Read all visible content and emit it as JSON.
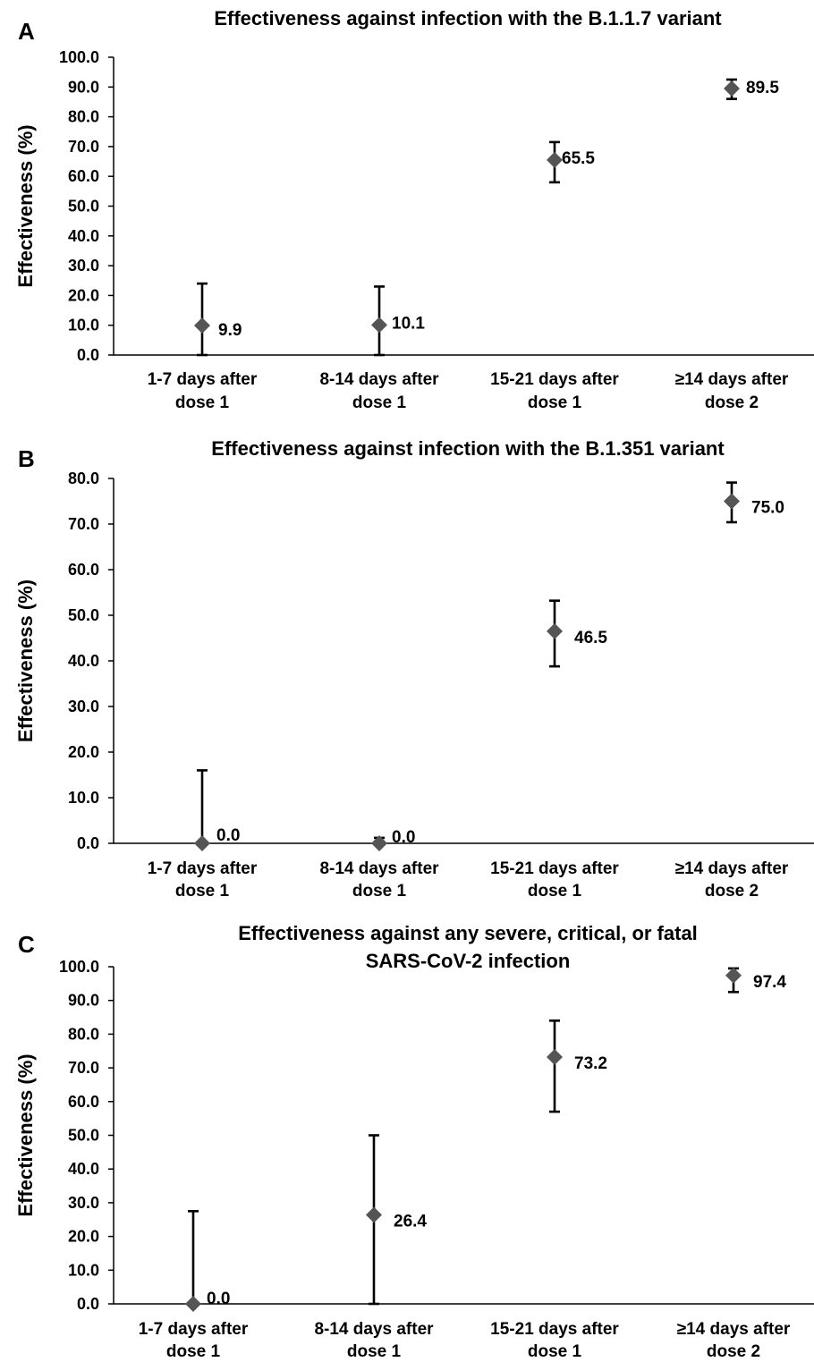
{
  "chart_data": [
    {
      "panel": "A",
      "type": "scatter",
      "title": [
        "Effectiveness against infection with the B.1.1.7 variant"
      ],
      "ylabel": "Effectiveness (%)",
      "xlabel": "",
      "categories": [
        [
          "1-7 days after",
          "dose 1"
        ],
        [
          "8-14 days after",
          "dose 1"
        ],
        [
          "15-21 days after",
          "dose 1"
        ],
        [
          "≥14 days after",
          "dose 2"
        ]
      ],
      "yticks": [
        "0.0",
        "10.0",
        "20.0",
        "30.0",
        "40.0",
        "50.0",
        "60.0",
        "70.0",
        "80.0",
        "90.0",
        "100.0"
      ],
      "ylim": [
        0,
        100
      ],
      "grid": false,
      "values": [
        9.9,
        10.1,
        65.5,
        89.5
      ],
      "labels": [
        "9.9",
        "10.1",
        "65.5",
        "89.5"
      ],
      "ci_lower": [
        0,
        0,
        58,
        86
      ],
      "ci_upper": [
        24,
        23,
        71.5,
        92.5
      ]
    },
    {
      "panel": "B",
      "type": "scatter",
      "title": [
        "Effectiveness against infection with the B.1.351 variant"
      ],
      "ylabel": "Effectiveness (%)",
      "xlabel": "",
      "categories": [
        [
          "1-7 days after",
          "dose 1"
        ],
        [
          "8-14 days after",
          "dose 1"
        ],
        [
          "15-21 days after",
          "dose 1"
        ],
        [
          "≥14 days after",
          "dose 2"
        ]
      ],
      "yticks": [
        "0.0",
        "10.0",
        "20.0",
        "30.0",
        "40.0",
        "50.0",
        "60.0",
        "70.0",
        "80.0"
      ],
      "ylim": [
        0,
        80
      ],
      "grid": false,
      "values": [
        0.0,
        0.0,
        46.5,
        75.0
      ],
      "labels": [
        "0.0",
        "0.0",
        "46.5",
        "75.0"
      ],
      "ci_lower": [
        0,
        0,
        38.8,
        70.4
      ],
      "ci_upper": [
        16,
        1.2,
        53.2,
        79.1
      ]
    },
    {
      "panel": "C",
      "type": "scatter",
      "title": [
        "Effectiveness against any severe, critical, or fatal",
        "SARS-CoV-2 infection"
      ],
      "ylabel": "Effectiveness (%)",
      "xlabel": "",
      "categories": [
        [
          "1-7 days after",
          "dose 1"
        ],
        [
          "8-14 days after",
          "dose 1"
        ],
        [
          "15-21 days after",
          "dose 1"
        ],
        [
          "≥14 days after",
          "dose 2"
        ]
      ],
      "yticks": [
        "0.0",
        "10.0",
        "20.0",
        "30.0",
        "40.0",
        "50.0",
        "60.0",
        "70.0",
        "80.0",
        "90.0",
        "100.0"
      ],
      "ylim": [
        0,
        100
      ],
      "grid": false,
      "values": [
        0.0,
        26.4,
        73.2,
        97.4
      ],
      "labels": [
        "0.0",
        "26.4",
        "73.2",
        "97.4"
      ],
      "ci_lower": [
        0,
        0,
        57,
        92.5
      ],
      "ci_upper": [
        27.5,
        50,
        84,
        99.5
      ]
    }
  ]
}
